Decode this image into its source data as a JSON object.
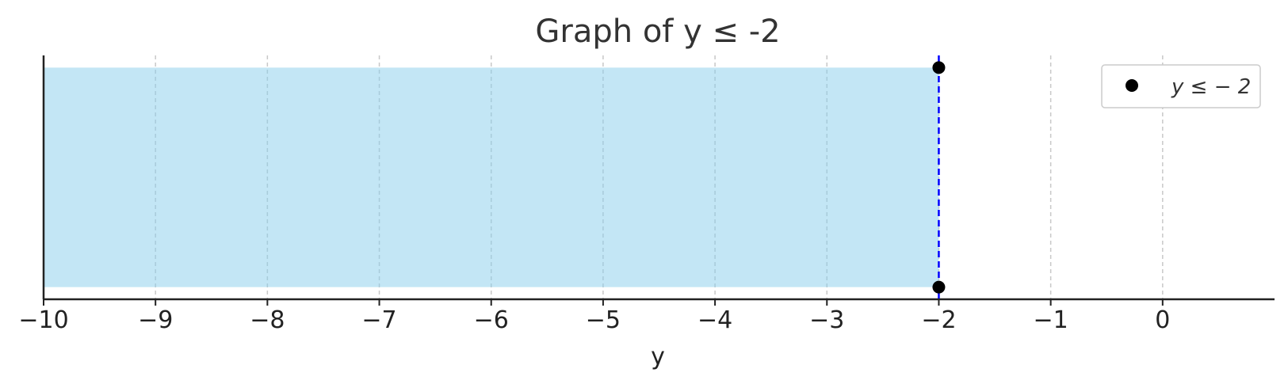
{
  "chart_data": {
    "type": "area",
    "title": "Graph of y ≤ -2",
    "xlabel": "y",
    "ylabel": "",
    "xlim": [
      -10,
      1
    ],
    "ylim": [
      0,
      1
    ],
    "x_ticks": [
      -10,
      -9,
      -8,
      -7,
      -6,
      -5,
      -4,
      -3,
      -2,
      -1,
      0
    ],
    "x_tick_labels": [
      "−10",
      "−9",
      "−8",
      "−7",
      "−6",
      "−5",
      "−4",
      "−3",
      "−2",
      "−1",
      "0"
    ],
    "grid": "vertical dashed",
    "shaded_region": {
      "x_from": -10,
      "x_to": -2,
      "y_from": 0.05,
      "y_to": 0.95,
      "color": "#87ceeb"
    },
    "boundary_line": {
      "x": -2,
      "style": "dashed",
      "color": "#0000ff"
    },
    "points": [
      {
        "x": -2,
        "y": 0.95
      },
      {
        "x": -2,
        "y": 0.05
      }
    ],
    "point_color": "#000000",
    "legend": {
      "entries": [
        "y ≤ − 2"
      ],
      "placement": "top-right"
    }
  }
}
